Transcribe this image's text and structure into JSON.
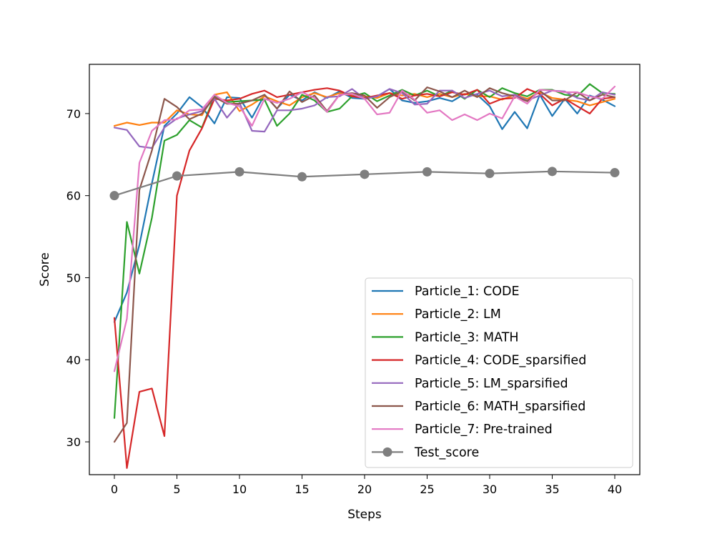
{
  "chart_data": {
    "type": "line",
    "title": "",
    "xlabel": "Steps",
    "ylabel": "Score",
    "xlim": [
      -2,
      42
    ],
    "ylim": [
      26,
      76
    ],
    "xticks": [
      0,
      5,
      10,
      15,
      20,
      25,
      30,
      35,
      40
    ],
    "yticks": [
      30,
      40,
      50,
      60,
      70
    ],
    "grid": false,
    "legend_position": "bottom-right",
    "series": [
      {
        "name": "Particle_1: CODE",
        "color": "#1f77b4",
        "x": [
          0,
          1,
          2,
          3,
          4,
          5,
          6,
          7,
          8,
          9,
          10,
          11,
          12,
          13,
          14,
          15,
          16,
          17,
          18,
          19,
          20,
          21,
          22,
          23,
          24,
          25,
          26,
          27,
          28,
          29,
          30,
          31,
          32,
          33,
          34,
          35,
          36,
          37,
          38,
          39,
          40
        ],
        "values": [
          44.6,
          48.2,
          54.0,
          61.5,
          68.5,
          70.0,
          72.0,
          70.8,
          68.8,
          72.0,
          71.9,
          69.5,
          72.3,
          70.6,
          72.3,
          71.6,
          72.6,
          71.9,
          72.7,
          71.9,
          71.8,
          72.1,
          73.0,
          71.6,
          71.3,
          71.5,
          71.9,
          71.5,
          72.4,
          72.3,
          70.9,
          68.1,
          70.2,
          68.2,
          72.3,
          69.7,
          71.8,
          70.0,
          72.2,
          71.7,
          70.9
        ]
      },
      {
        "name": "Particle_2: LM",
        "color": "#ff7f0e",
        "x": [
          0,
          1,
          2,
          3,
          4,
          5,
          6,
          7,
          8,
          9,
          10,
          11,
          12,
          13,
          14,
          15,
          16,
          17,
          18,
          19,
          20,
          21,
          22,
          23,
          24,
          25,
          26,
          27,
          28,
          29,
          30,
          31,
          32,
          33,
          34,
          35,
          36,
          37,
          38,
          39,
          40
        ],
        "values": [
          68.5,
          68.9,
          68.6,
          68.9,
          68.9,
          70.4,
          69.9,
          69.8,
          72.3,
          72.6,
          70.3,
          71.1,
          72.1,
          71.5,
          71.0,
          72.0,
          72.5,
          72.0,
          72.5,
          72.2,
          72.1,
          71.9,
          72.5,
          72.2,
          72.4,
          72.0,
          72.4,
          72.0,
          72.4,
          72.1,
          72.1,
          71.7,
          72.3,
          71.8,
          72.6,
          71.9,
          71.7,
          71.5,
          71.0,
          71.4,
          71.8
        ]
      },
      {
        "name": "Particle_3: MATH",
        "color": "#2ca02c",
        "x": [
          0,
          1,
          2,
          3,
          4,
          5,
          6,
          7,
          8,
          9,
          10,
          11,
          12,
          13,
          14,
          15,
          16,
          17,
          18,
          19,
          20,
          21,
          22,
          23,
          24,
          25,
          26,
          27,
          28,
          29,
          30,
          31,
          32,
          33,
          34,
          35,
          36,
          37,
          38,
          39,
          40
        ],
        "values": [
          32.9,
          56.8,
          50.5,
          57.3,
          66.7,
          67.4,
          69.2,
          68.3,
          72.1,
          71.4,
          71.5,
          71.6,
          71.7,
          68.5,
          70.0,
          72.3,
          71.6,
          70.2,
          70.6,
          72.1,
          72.5,
          71.5,
          72.2,
          72.9,
          72.2,
          72.8,
          72.1,
          72.8,
          71.8,
          72.9,
          72.0,
          73.1,
          72.5,
          72.1,
          72.9,
          72.9,
          72.3,
          72.1,
          73.6,
          72.5,
          72.4
        ]
      },
      {
        "name": "Particle_4: CODE_sparsified",
        "color": "#d62728",
        "x": [
          0,
          1,
          2,
          3,
          4,
          5,
          6,
          7,
          8,
          9,
          10,
          11,
          12,
          13,
          14,
          15,
          16,
          17,
          18,
          19,
          20,
          21,
          22,
          23,
          24,
          25,
          26,
          27,
          28,
          29,
          30,
          31,
          32,
          33,
          34,
          35,
          36,
          37,
          38,
          39,
          40
        ],
        "values": [
          45.1,
          26.8,
          36.1,
          36.5,
          30.7,
          60.0,
          65.5,
          68.2,
          71.8,
          71.6,
          71.8,
          72.4,
          72.8,
          72.0,
          72.3,
          72.6,
          72.9,
          73.1,
          72.8,
          72.1,
          71.9,
          72.2,
          72.5,
          71.8,
          72.2,
          72.4,
          72.1,
          72.6,
          72.3,
          72.9,
          71.2,
          71.8,
          71.9,
          73.0,
          72.4,
          71.0,
          71.8,
          70.9,
          70.0,
          71.8,
          72.0
        ]
      },
      {
        "name": "Particle_5: LM_sparsified",
        "color": "#9467bd",
        "x": [
          0,
          1,
          2,
          3,
          4,
          5,
          6,
          7,
          8,
          9,
          10,
          11,
          12,
          13,
          14,
          15,
          16,
          17,
          18,
          19,
          20,
          21,
          22,
          23,
          24,
          25,
          26,
          27,
          28,
          29,
          30,
          31,
          32,
          33,
          34,
          35,
          36,
          37,
          38,
          39,
          40
        ],
        "values": [
          68.3,
          68.0,
          66.0,
          65.8,
          68.3,
          69.4,
          69.9,
          70.3,
          71.8,
          69.5,
          71.3,
          67.9,
          67.8,
          70.4,
          70.4,
          70.6,
          71.0,
          72.0,
          72.1,
          73.0,
          71.8,
          72.1,
          73.0,
          72.5,
          71.1,
          71.2,
          72.8,
          72.8,
          71.9,
          72.4,
          72.8,
          72.1,
          72.3,
          71.6,
          72.2,
          72.8,
          72.7,
          71.9,
          71.6,
          72.6,
          72.3
        ]
      },
      {
        "name": "Particle_6: MATH_sparsified",
        "color": "#8c564b",
        "x": [
          0,
          1,
          2,
          3,
          4,
          5,
          6,
          7,
          8,
          9,
          10,
          11,
          12,
          13,
          14,
          15,
          16,
          17,
          18,
          19,
          20,
          21,
          22,
          23,
          24,
          25,
          26,
          27,
          28,
          29,
          30,
          31,
          32,
          33,
          34,
          35,
          36,
          37,
          38,
          39,
          40
        ],
        "values": [
          30.0,
          32.3,
          60.7,
          65.5,
          71.8,
          70.8,
          69.3,
          70.0,
          72.0,
          71.2,
          71.2,
          71.6,
          72.3,
          70.6,
          72.7,
          71.4,
          72.2,
          70.3,
          72.3,
          72.5,
          72.2,
          70.7,
          72.0,
          72.7,
          71.6,
          73.2,
          72.7,
          72.0,
          72.8,
          72.0,
          73.1,
          72.5,
          72.1,
          71.5,
          72.8,
          71.6,
          71.6,
          72.6,
          71.6,
          72.3,
          72.0
        ]
      },
      {
        "name": "Particle_7: Pre-trained",
        "color": "#e377c2",
        "x": [
          0,
          1,
          2,
          3,
          4,
          5,
          6,
          7,
          8,
          9,
          10,
          11,
          12,
          13,
          14,
          15,
          16,
          17,
          18,
          19,
          20,
          21,
          22,
          23,
          24,
          25,
          26,
          27,
          28,
          29,
          30,
          31,
          32,
          33,
          34,
          35,
          36,
          37,
          38,
          39,
          40
        ],
        "values": [
          38.6,
          45.0,
          64.0,
          67.9,
          69.2,
          69.3,
          70.4,
          70.5,
          72.3,
          71.3,
          70.9,
          68.5,
          71.8,
          71.3,
          71.8,
          72.6,
          71.9,
          70.2,
          72.3,
          72.4,
          71.8,
          69.9,
          70.1,
          72.8,
          71.7,
          70.1,
          70.4,
          69.2,
          69.9,
          69.2,
          70.0,
          69.4,
          72.1,
          71.2,
          72.9,
          72.8,
          72.6,
          72.6,
          72.1,
          71.8,
          73.3
        ]
      },
      {
        "name": "Test_score",
        "color": "#7f7f7f",
        "marker": "circle",
        "x": [
          0,
          5,
          10,
          15,
          20,
          25,
          30,
          35,
          40
        ],
        "values": [
          60.0,
          62.4,
          62.9,
          62.3,
          62.6,
          62.9,
          62.7,
          62.95,
          62.8
        ]
      }
    ]
  }
}
